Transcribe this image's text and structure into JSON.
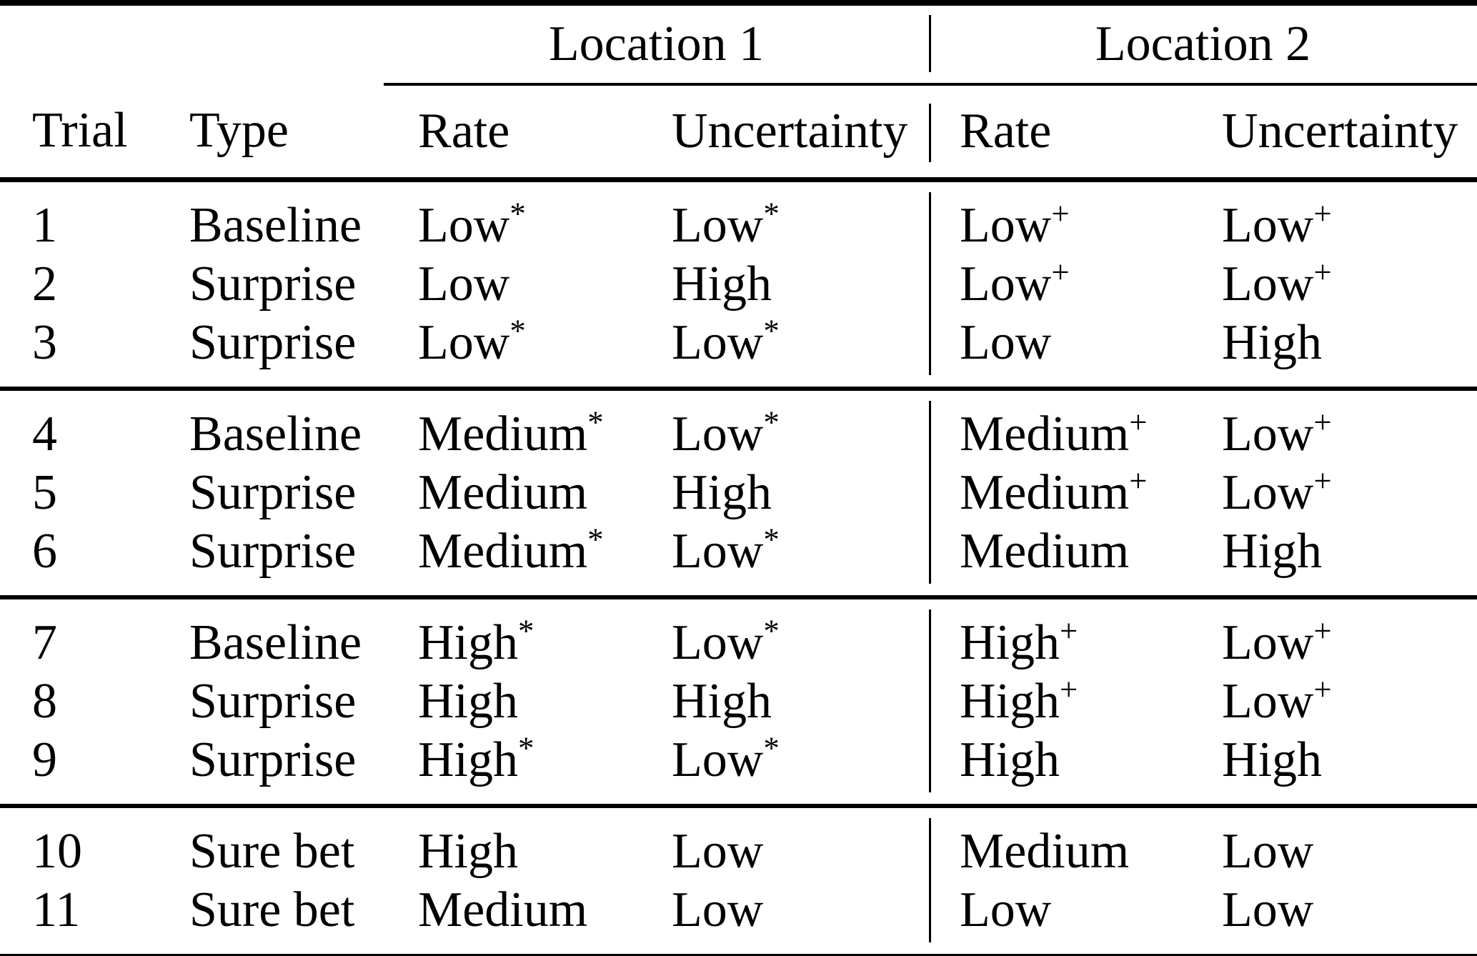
{
  "colors": {
    "ink": "#000000",
    "background": "#ffffff",
    "rule": "#000000"
  },
  "table": {
    "column_groups": {
      "location1": "Location 1",
      "location2": "Location 2"
    },
    "columns": {
      "trial": "Trial",
      "type": "Type",
      "l1_rate": "Rate",
      "l1_uncertainty": "Uncertainty",
      "l2_rate": "Rate",
      "l2_uncertainty": "Uncertainty"
    },
    "row_groups": [
      [
        {
          "trial": "1",
          "type": "Baseline",
          "l1_rate": {
            "text": "Low",
            "sup": "*"
          },
          "l1_uncertainty": {
            "text": "Low",
            "sup": "*"
          },
          "l2_rate": {
            "text": "Low",
            "sup": "+"
          },
          "l2_uncertainty": {
            "text": "Low",
            "sup": "+"
          }
        },
        {
          "trial": "2",
          "type": "Surprise",
          "l1_rate": {
            "text": "Low",
            "sup": ""
          },
          "l1_uncertainty": {
            "text": "High",
            "sup": ""
          },
          "l2_rate": {
            "text": "Low",
            "sup": "+"
          },
          "l2_uncertainty": {
            "text": "Low",
            "sup": "+"
          }
        },
        {
          "trial": "3",
          "type": "Surprise",
          "l1_rate": {
            "text": "Low",
            "sup": "*"
          },
          "l1_uncertainty": {
            "text": "Low",
            "sup": "*"
          },
          "l2_rate": {
            "text": "Low",
            "sup": ""
          },
          "l2_uncertainty": {
            "text": "High",
            "sup": ""
          }
        }
      ],
      [
        {
          "trial": "4",
          "type": "Baseline",
          "l1_rate": {
            "text": "Medium",
            "sup": "*"
          },
          "l1_uncertainty": {
            "text": "Low",
            "sup": "*"
          },
          "l2_rate": {
            "text": "Medium",
            "sup": "+"
          },
          "l2_uncertainty": {
            "text": "Low",
            "sup": "+"
          }
        },
        {
          "trial": "5",
          "type": "Surprise",
          "l1_rate": {
            "text": "Medium",
            "sup": ""
          },
          "l1_uncertainty": {
            "text": "High",
            "sup": ""
          },
          "l2_rate": {
            "text": "Medium",
            "sup": "+"
          },
          "l2_uncertainty": {
            "text": "Low",
            "sup": "+"
          }
        },
        {
          "trial": "6",
          "type": "Surprise",
          "l1_rate": {
            "text": "Medium",
            "sup": "*"
          },
          "l1_uncertainty": {
            "text": "Low",
            "sup": "*"
          },
          "l2_rate": {
            "text": "Medium",
            "sup": ""
          },
          "l2_uncertainty": {
            "text": "High",
            "sup": ""
          }
        }
      ],
      [
        {
          "trial": "7",
          "type": "Baseline",
          "l1_rate": {
            "text": "High",
            "sup": "*"
          },
          "l1_uncertainty": {
            "text": "Low",
            "sup": "*"
          },
          "l2_rate": {
            "text": "High",
            "sup": "+"
          },
          "l2_uncertainty": {
            "text": "Low",
            "sup": "+"
          }
        },
        {
          "trial": "8",
          "type": "Surprise",
          "l1_rate": {
            "text": "High",
            "sup": ""
          },
          "l1_uncertainty": {
            "text": "High",
            "sup": ""
          },
          "l2_rate": {
            "text": "High",
            "sup": "+"
          },
          "l2_uncertainty": {
            "text": "Low",
            "sup": "+"
          }
        },
        {
          "trial": "9",
          "type": "Surprise",
          "l1_rate": {
            "text": "High",
            "sup": "*"
          },
          "l1_uncertainty": {
            "text": "Low",
            "sup": "*"
          },
          "l2_rate": {
            "text": "High",
            "sup": ""
          },
          "l2_uncertainty": {
            "text": "High",
            "sup": ""
          }
        }
      ],
      [
        {
          "trial": "10",
          "type": "Sure bet",
          "l1_rate": {
            "text": "High",
            "sup": ""
          },
          "l1_uncertainty": {
            "text": "Low",
            "sup": ""
          },
          "l2_rate": {
            "text": "Medium",
            "sup": ""
          },
          "l2_uncertainty": {
            "text": "Low",
            "sup": ""
          }
        },
        {
          "trial": "11",
          "type": "Sure bet",
          "l1_rate": {
            "text": "Medium",
            "sup": ""
          },
          "l1_uncertainty": {
            "text": "Low",
            "sup": ""
          },
          "l2_rate": {
            "text": "Low",
            "sup": ""
          },
          "l2_uncertainty": {
            "text": "Low",
            "sup": ""
          }
        }
      ]
    ]
  }
}
